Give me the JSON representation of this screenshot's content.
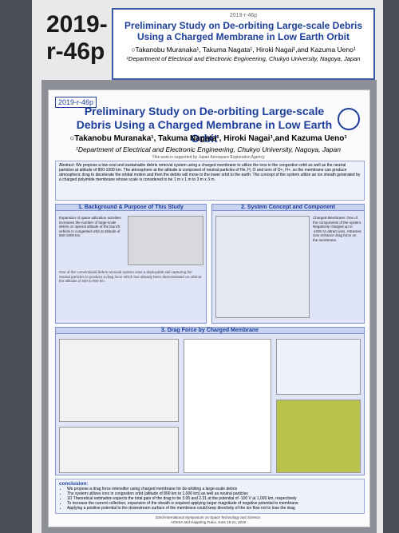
{
  "board_label": {
    "line1": "2019-",
    "line2": "r-46p"
  },
  "card": {
    "code": "2019-r-46p",
    "title": "Preliminary Study on De-orbiting Large-scale Debris Using a Charged Membrane in Low Earth Orbit",
    "authors": "○Takanobu Muranaka¹, Takuma Nagata¹, Hiroki Nagai¹,and Kazuma Ueno¹",
    "affiliation": "¹Department of Electrical and Electronic Engineering, Chukyo University, Nagoya, Japan"
  },
  "poster": {
    "code": "2019-r-46p",
    "title": "Preliminary Study on De-orbiting Large-scale Debris Using a Charged Membrane in Low Earth Orbit",
    "authors": "○Takanobu Muranaka¹, Takuma Nagata¹, Hiroki Nagai¹,and Kazuma Ueno¹",
    "affiliation": "¹Department of Electrical and Electronic Engineering, Chukyo University, Nagoya, Japan",
    "support": "This work is supported by Japan Aerospace Exploration Agency",
    "abstract": "Abstract: We propose a low-cost and sustainable debris removal system using a charged membrane to utilize the ions in the congestion orbit as well as the neutral particles at altitude of 800-1000 km. The atmosphere at the altitude is composed of neutral particles of He, H, O and ions of O+, H+, so the membrane can produce atmospheric drag to decelerate the orbital motion and then the debris will move to the lower orbit to the earth. The concept of the system utilize an ion sheath generated by a charged polyimide membrane whose scale is considered to be 1 m x 1 m to 3 m x 3 m.",
    "sections": [
      "1. Background & Purpose of This Study",
      "2. System Concept and Component",
      "3. Drag Force by Charged Membrane",
      "conclusion:"
    ],
    "section1_text": "Expansion of space utilization activities increases the number of large-scale debris on special altitude of the launch vehicle in congested orbit at altitude of 800-1000 km.",
    "section1_text2": "One of the conventional debris removal system uses a deployable sail capturing the neutral particles to produce a drag force which has already been demonstrated on orbit at the altitude of 400 to 500 km.",
    "section2_text": "Charged Membrane: One of the components of the system. Negatively charged up to -100V to attract ions. Attracted ions enhance drag force on the membrane.",
    "conclusion": [
      "We propose a drag force intensifier using charged membrane for de-orbiting a large-scale debris",
      "The system utilizes ions in congestion orbit (altitude of 800 km to 1,000 km) as well as neutral particles",
      "1D Theoretical estimation expects the total gain of the drag to be 3.05 and 2.31 at the potential of -100 V at 1,000 km, respectively",
      "To increase the current collection, expansion of the sheath is required applying larger magnitude of negative potential to membrane",
      "Applying a positive potential to the downstream surface of the membrane could keep directivity of the ion flow not to lose the drag"
    ],
    "footer": [
      "32nd International Symposium on Space Technology and Science,",
      "AOSSA and Happiring Fukui, June 15-21, 2019"
    ]
  }
}
